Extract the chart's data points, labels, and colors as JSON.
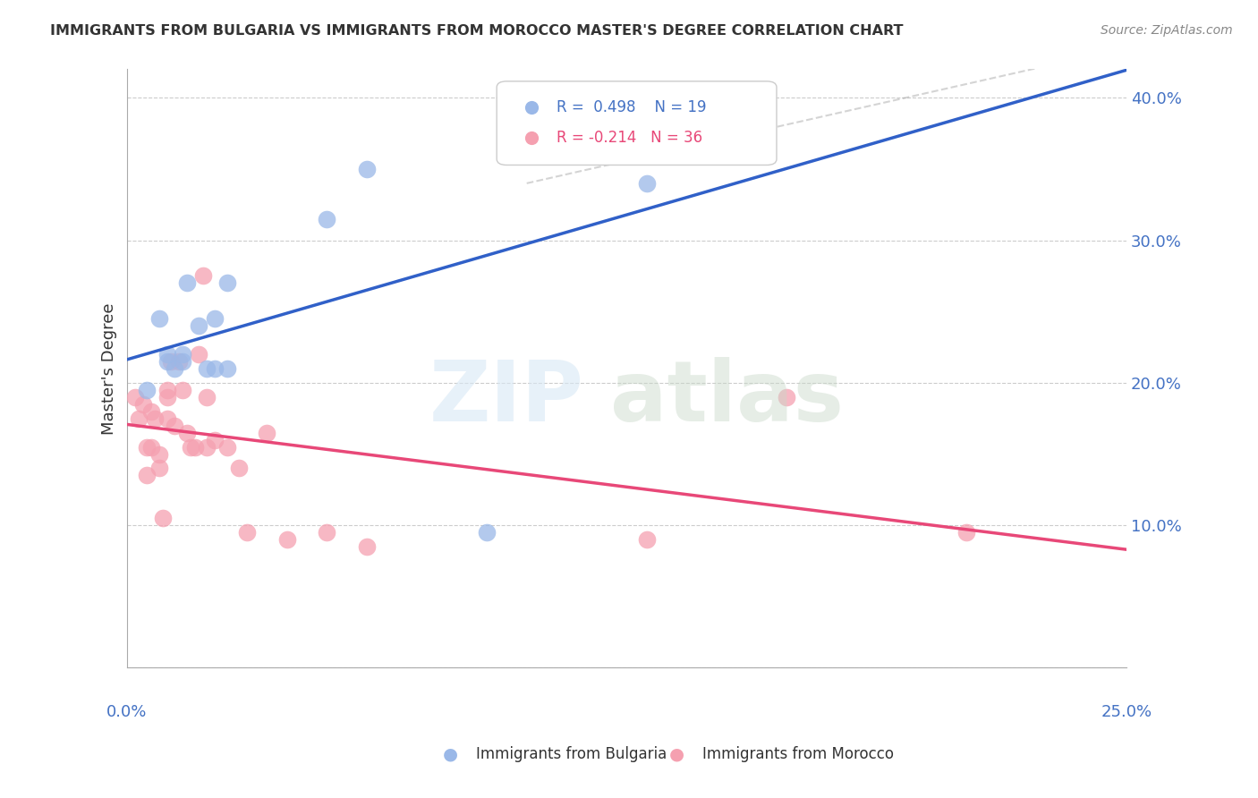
{
  "title": "IMMIGRANTS FROM BULGARIA VS IMMIGRANTS FROM MOROCCO MASTER'S DEGREE CORRELATION CHART",
  "source": "Source: ZipAtlas.com",
  "ylabel": "Master's Degree",
  "ytick_labels": [
    "",
    "10.0%",
    "20.0%",
    "30.0%",
    "40.0%"
  ],
  "ytick_values": [
    0.0,
    0.1,
    0.2,
    0.3,
    0.4
  ],
  "xlim": [
    0.0,
    0.25
  ],
  "ylim": [
    0.0,
    0.42
  ],
  "r_bulgaria": 0.498,
  "n_bulgaria": 19,
  "r_morocco": -0.214,
  "n_morocco": 36,
  "color_bulgaria": "#9AB8E8",
  "color_morocco": "#F5A0B0",
  "line_color_bulgaria": "#3060C8",
  "line_color_morocco": "#E84878",
  "bulgaria_x": [
    0.005,
    0.008,
    0.01,
    0.01,
    0.012,
    0.014,
    0.014,
    0.015,
    0.018,
    0.02,
    0.022,
    0.022,
    0.025,
    0.025,
    0.05,
    0.06,
    0.09,
    0.115,
    0.13
  ],
  "bulgaria_y": [
    0.195,
    0.245,
    0.215,
    0.22,
    0.21,
    0.215,
    0.22,
    0.27,
    0.24,
    0.21,
    0.21,
    0.245,
    0.21,
    0.27,
    0.315,
    0.35,
    0.095,
    0.375,
    0.34
  ],
  "morocco_x": [
    0.002,
    0.003,
    0.004,
    0.005,
    0.005,
    0.006,
    0.006,
    0.007,
    0.008,
    0.008,
    0.009,
    0.01,
    0.01,
    0.01,
    0.011,
    0.012,
    0.013,
    0.014,
    0.015,
    0.016,
    0.017,
    0.018,
    0.019,
    0.02,
    0.02,
    0.022,
    0.025,
    0.028,
    0.03,
    0.035,
    0.04,
    0.05,
    0.06,
    0.13,
    0.165,
    0.21
  ],
  "morocco_y": [
    0.19,
    0.175,
    0.185,
    0.135,
    0.155,
    0.18,
    0.155,
    0.175,
    0.15,
    0.14,
    0.105,
    0.195,
    0.175,
    0.19,
    0.215,
    0.17,
    0.215,
    0.195,
    0.165,
    0.155,
    0.155,
    0.22,
    0.275,
    0.19,
    0.155,
    0.16,
    0.155,
    0.14,
    0.095,
    0.165,
    0.09,
    0.095,
    0.085,
    0.09,
    0.19,
    0.095
  ]
}
